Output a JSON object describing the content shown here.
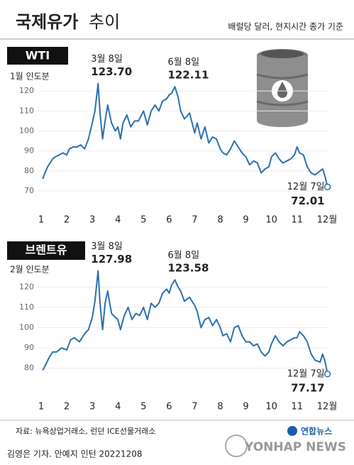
{
  "header": {
    "title": "국제유가",
    "title_light": "추이",
    "note": "배럴당 달러, 현지시간 종가 기준"
  },
  "chart_data": [
    {
      "type": "line",
      "label": "WTI",
      "sublabel": "1월 인도분",
      "color": "#2a70b0",
      "grid": true,
      "xlim": [
        1,
        12.2
      ],
      "ylim": [
        65,
        130
      ],
      "xticks": [
        1,
        2,
        3,
        4,
        5,
        6,
        7,
        8,
        9,
        10,
        11,
        {
          "value": 12,
          "label": "12월"
        }
      ],
      "yticks": [
        70,
        80,
        90,
        100,
        110,
        120
      ],
      "x": [
        1.06,
        1.15,
        1.25,
        1.35,
        1.45,
        1.55,
        1.7,
        1.85,
        2.0,
        2.1,
        2.25,
        2.4,
        2.55,
        2.7,
        2.85,
        3.0,
        3.1,
        3.226,
        3.3,
        3.4,
        3.5,
        3.6,
        3.75,
        3.9,
        4.0,
        4.1,
        4.2,
        4.35,
        4.5,
        4.65,
        4.8,
        5.0,
        5.15,
        5.3,
        5.45,
        5.6,
        5.75,
        5.9,
        6.0,
        6.1,
        6.226,
        6.35,
        6.45,
        6.6,
        6.8,
        7.0,
        7.1,
        7.25,
        7.4,
        7.55,
        7.7,
        7.85,
        8.0,
        8.1,
        8.25,
        8.4,
        8.55,
        8.7,
        8.85,
        9.0,
        9.15,
        9.3,
        9.45,
        9.6,
        9.75,
        9.9,
        10.0,
        10.15,
        10.3,
        10.45,
        10.6,
        10.75,
        10.9,
        11.0,
        11.1,
        11.25,
        11.4,
        11.55,
        11.7,
        11.9,
        12.0,
        12.1,
        12.19
      ],
      "values": [
        76,
        79,
        82,
        84,
        86,
        87,
        88,
        89,
        88,
        91,
        92,
        92,
        93,
        91,
        96,
        104,
        110,
        123.7,
        109,
        96,
        105,
        113,
        104,
        100,
        102,
        96,
        104,
        108,
        102,
        105,
        105,
        110,
        103,
        110,
        113,
        110,
        115,
        116,
        118,
        119,
        122.11,
        117,
        110,
        106,
        109,
        99,
        104,
        96,
        102,
        94,
        97,
        96,
        91,
        89,
        88,
        91,
        95,
        92,
        89,
        87,
        83,
        85,
        84,
        79,
        81,
        82,
        87,
        89,
        86,
        84,
        85,
        86,
        88,
        92,
        89,
        88,
        82,
        79,
        78,
        80,
        81,
        77,
        72.01
      ],
      "annotations": [
        {
          "date": "3월 8일",
          "value": 123.7,
          "value_label": "123.70",
          "x": 3.226
        },
        {
          "date": "6월 8일",
          "value": 122.11,
          "value_label": "122.11",
          "x": 6.226
        },
        {
          "date": "12월 7일",
          "value": 72.01,
          "value_label": "72.01",
          "x": 12.19
        }
      ]
    },
    {
      "type": "line",
      "label": "브렌트유",
      "sublabel": "2월 인도분",
      "color": "#2a70b0",
      "grid": true,
      "xlim": [
        1,
        12.2
      ],
      "ylim": [
        75,
        132
      ],
      "xticks": [
        1,
        2,
        3,
        4,
        5,
        6,
        7,
        8,
        9,
        10,
        11,
        {
          "value": 12,
          "label": "12월"
        }
      ],
      "yticks": [
        80,
        90,
        100,
        110,
        120
      ],
      "x": [
        1.06,
        1.15,
        1.3,
        1.45,
        1.6,
        1.8,
        2.0,
        2.15,
        2.3,
        2.5,
        2.7,
        2.85,
        3.0,
        3.1,
        3.226,
        3.3,
        3.4,
        3.5,
        3.6,
        3.75,
        3.9,
        4.0,
        4.1,
        4.25,
        4.4,
        4.55,
        4.7,
        4.85,
        5.0,
        5.15,
        5.3,
        5.45,
        5.6,
        5.75,
        5.9,
        6.0,
        6.1,
        6.226,
        6.35,
        6.45,
        6.6,
        6.8,
        7.0,
        7.1,
        7.25,
        7.4,
        7.55,
        7.7,
        7.85,
        8.0,
        8.1,
        8.25,
        8.4,
        8.55,
        8.7,
        8.85,
        9.0,
        9.15,
        9.3,
        9.45,
        9.6,
        9.75,
        9.9,
        10.0,
        10.15,
        10.3,
        10.45,
        10.6,
        10.75,
        10.9,
        11.0,
        11.1,
        11.25,
        11.4,
        11.55,
        11.7,
        11.9,
        12.0,
        12.1,
        12.19
      ],
      "values": [
        79,
        81,
        85,
        88,
        88,
        90,
        89,
        94,
        95,
        93,
        97,
        99,
        105,
        113,
        127.98,
        112,
        99,
        112,
        118,
        107,
        105,
        104,
        99,
        106,
        110,
        104,
        107,
        106,
        110,
        104,
        112,
        110,
        112,
        117,
        119,
        117,
        121,
        123.58,
        120,
        118,
        113,
        115,
        111,
        108,
        100,
        104,
        105,
        101,
        104,
        100,
        96,
        97,
        93,
        100,
        101,
        96,
        93,
        93,
        91,
        92,
        88,
        86,
        88,
        92,
        96,
        93,
        91,
        93,
        94,
        95,
        95,
        98,
        96,
        93,
        87,
        84,
        83,
        87,
        83,
        77.17
      ],
      "annotations": [
        {
          "date": "3월 8일",
          "value": 127.98,
          "value_label": "127.98",
          "x": 3.226
        },
        {
          "date": "6월 8일",
          "value": 123.58,
          "value_label": "123.58",
          "x": 6.226
        },
        {
          "date": "12월 7일",
          "value": 77.17,
          "value_label": "77.17",
          "x": 12.19
        }
      ]
    }
  ],
  "footer": {
    "source": "자료: 뉴욕상업거래소, 런던 ICE선물거래소",
    "credit": "김영은 기자. 안예지 인턴  20221208",
    "logo": "연합뉴스",
    "logo_en": "YONHAP NEWS"
  }
}
